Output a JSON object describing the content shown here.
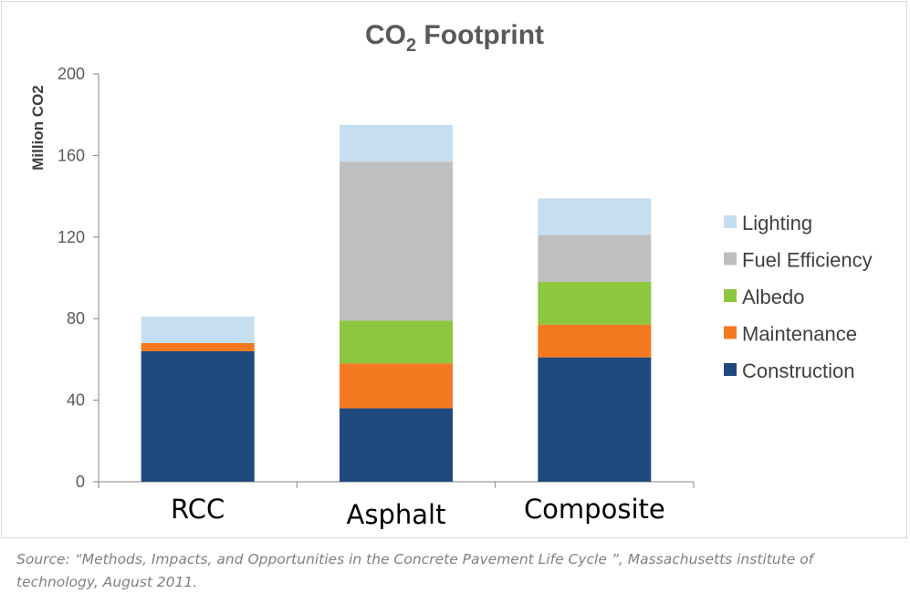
{
  "chart_data": {
    "type": "bar",
    "stacked": true,
    "title_main": "CO",
    "title_sub": "2",
    "title_rest": " Footprint",
    "ylabel": "Million CO2",
    "xlabel": "",
    "ylim": [
      0,
      200
    ],
    "yticks": [
      0,
      40,
      80,
      120,
      160,
      200
    ],
    "grid": false,
    "legend_position": "right",
    "categories": [
      "RCC",
      "Asphalt",
      "Composite"
    ],
    "series": [
      {
        "name": "Construction",
        "color": "#1f497d",
        "values": [
          64,
          36,
          61
        ]
      },
      {
        "name": "Maintenance",
        "color": "#f47920",
        "values": [
          4,
          22,
          16
        ]
      },
      {
        "name": "Albedo",
        "color": "#8dc63f",
        "values": [
          0,
          21,
          21
        ]
      },
      {
        "name": "Fuel Efficiency",
        "color": "#bfbfbf",
        "values": [
          0,
          78,
          23
        ]
      },
      {
        "name": "Lighting",
        "color": "#c6dff0",
        "values": [
          13,
          18,
          18
        ]
      }
    ],
    "legend_order": [
      "Lighting",
      "Fuel Efficiency",
      "Albedo",
      "Maintenance",
      "Construction"
    ]
  },
  "source_note": "Source: “Methods, Impacts, and Opportunities in the Concrete Pavement Life Cycle ”, Massachusetts institute of technology, August 2011."
}
